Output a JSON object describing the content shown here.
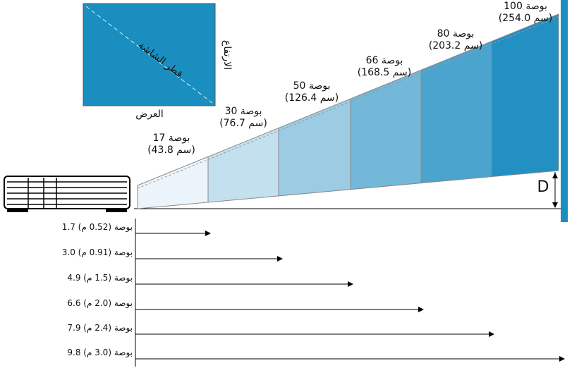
{
  "legend_screen": {
    "diagonal": "قطر الشاشة",
    "height": "الارتفاع",
    "width": "العرض"
  },
  "screen_sizes": [
    {
      "size": "17 بوصة",
      "metric": "(43.8 سم)"
    },
    {
      "size": "30 بوصة",
      "metric": "(76.7 سم)"
    },
    {
      "size": "50 بوصة",
      "metric": "(126.4 سم)"
    },
    {
      "size": "66 بوصة",
      "metric": "(168.5 سم)"
    },
    {
      "size": "80 بوصة",
      "metric": "(203.2 سم)"
    },
    {
      "size": "100 بوصة",
      "metric": "(254.0 سم)"
    }
  ],
  "offset_label": "D",
  "distances": [
    "1.7 بوصة (0.52 م)",
    "3.0 بوصة (0.91 م)",
    "4.9 بوصة (1.5 م)",
    "6.6 بوصة (2.0 م)",
    "7.9 بوصة (2.4 م)",
    "9.8 بوصة (3.0 م)"
  ]
}
